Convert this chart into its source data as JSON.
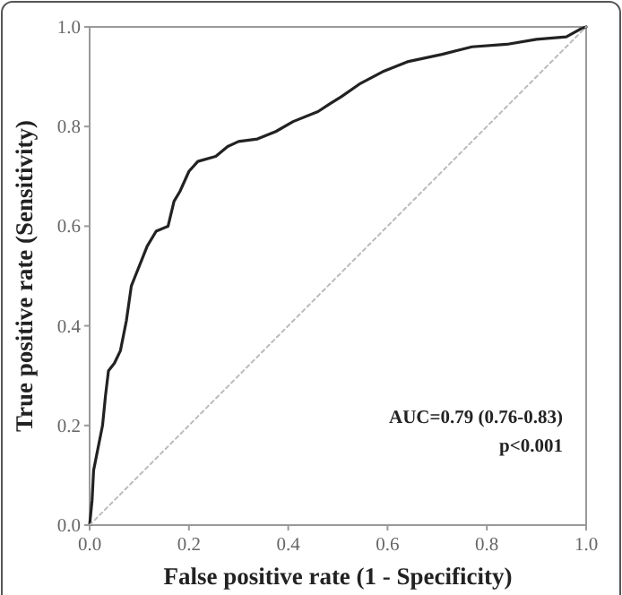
{
  "chart_data": {
    "type": "line",
    "xlabel": "False positive rate (1 - Specificity)",
    "ylabel": "True positive rate (Sensitivity)",
    "xlim": [
      0,
      1
    ],
    "ylim": [
      0,
      1
    ],
    "xticks": [
      {
        "value": 0,
        "label": "0.0"
      },
      {
        "value": 0.2,
        "label": "0.2"
      },
      {
        "value": 0.4,
        "label": "0.4"
      },
      {
        "value": 0.6,
        "label": "0.6"
      },
      {
        "value": 0.8,
        "label": "0.8"
      },
      {
        "value": 1,
        "label": "1.0"
      }
    ],
    "yticks": [
      {
        "value": 0,
        "label": "0.0"
      },
      {
        "value": 0.2,
        "label": "0.2"
      },
      {
        "value": 0.4,
        "label": "0.4"
      },
      {
        "value": 0.6,
        "label": "0.6"
      },
      {
        "value": 0.8,
        "label": "0.8"
      },
      {
        "value": 1,
        "label": "1.0"
      }
    ],
    "grid": false,
    "marker": "none",
    "series": [
      {
        "color": "#222222",
        "line_style": "solid",
        "x": [
          0,
          0.005,
          0.008,
          0.014,
          0.02,
          0.026,
          0.032,
          0.038,
          0.05,
          0.062,
          0.074,
          0.084,
          0.092,
          0.104,
          0.116,
          0.134,
          0.158,
          0.17,
          0.182,
          0.2,
          0.218,
          0.254,
          0.278,
          0.3,
          0.338,
          0.375,
          0.41,
          0.46,
          0.483,
          0.507,
          0.543,
          0.59,
          0.64,
          0.71,
          0.77,
          0.84,
          0.9,
          0.96,
          0.987,
          1
        ],
        "values": [
          0,
          0.05,
          0.11,
          0.14,
          0.17,
          0.2,
          0.26,
          0.31,
          0.325,
          0.35,
          0.41,
          0.48,
          0.5,
          0.53,
          0.56,
          0.59,
          0.6,
          0.65,
          0.67,
          0.71,
          0.73,
          0.74,
          0.76,
          0.77,
          0.775,
          0.79,
          0.81,
          0.83,
          0.845,
          0.86,
          0.885,
          0.91,
          0.93,
          0.945,
          0.96,
          0.965,
          0.975,
          0.98,
          0.995,
          1
        ]
      },
      {
        "color": "#bbbbbb",
        "line_style": "dotted",
        "x": [
          0,
          1
        ],
        "values": [
          0,
          1
        ]
      }
    ],
    "annotations": [
      "AUC=0.79 (0.76-0.83)",
      "p<0.001"
    ]
  }
}
